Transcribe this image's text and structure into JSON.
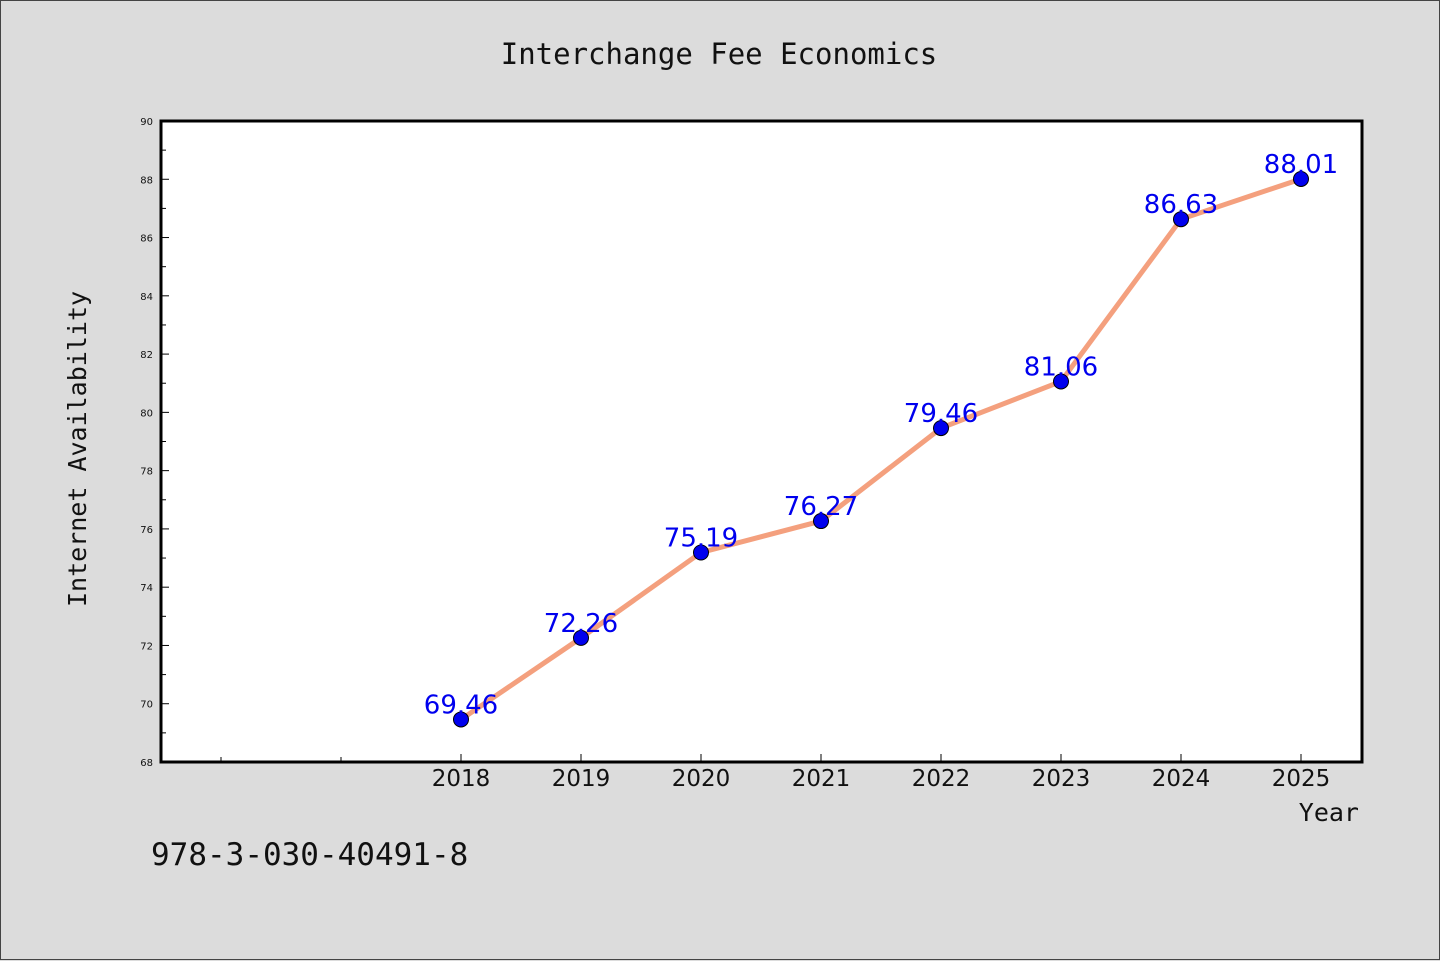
{
  "chart_data": {
    "type": "line",
    "title": "Interchange Fee Economics",
    "xlabel": "Year",
    "ylabel": "Internet Availability",
    "categories": [
      "2018",
      "2019",
      "2020",
      "2021",
      "2022",
      "2023",
      "2024",
      "2025"
    ],
    "series": [
      {
        "values": [
          69.46,
          72.26,
          75.19,
          76.27,
          79.46,
          81.06,
          86.63,
          88.01
        ],
        "labels": [
          "69.46",
          "72.26",
          "75.19",
          "76.27",
          "79.46",
          "81.06",
          "86.63",
          "88.01"
        ],
        "line_color": "#f4a07e",
        "marker_color": "#0000ee"
      }
    ],
    "ylim": [
      68,
      90
    ],
    "yticks": [
      "68",
      "70",
      "72",
      "74",
      "76",
      "78",
      "80",
      "82",
      "84",
      "86",
      "88",
      "90"
    ],
    "grid": false,
    "legend": "none"
  },
  "footer": {
    "isbn": "978-3-030-40491-8"
  }
}
